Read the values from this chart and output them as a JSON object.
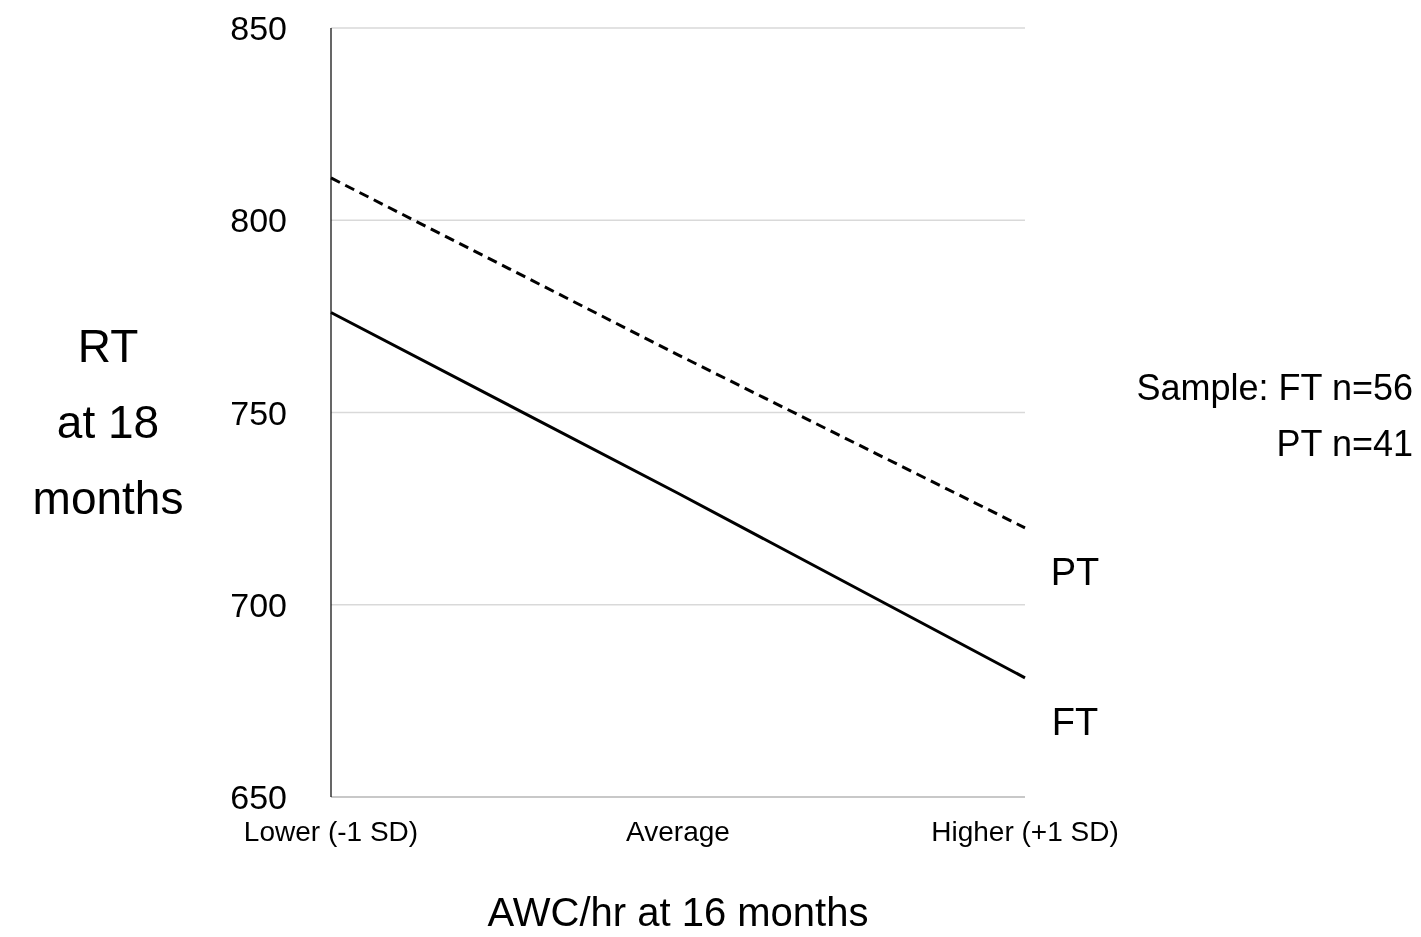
{
  "chart_data": {
    "type": "line",
    "xlabel": "AWC/hr at 16 months",
    "ylabel": "RT\nat 18\nmonths",
    "categories": [
      "Lower (-1 SD)",
      "Average",
      "Higher (+1 SD)"
    ],
    "series": [
      {
        "name": "PT",
        "color": "#000000",
        "line_style": "dashed",
        "values": [
          811,
          765,
          720
        ]
      },
      {
        "name": "FT",
        "color": "#000000",
        "line_style": "solid",
        "values": [
          776,
          729,
          681
        ]
      }
    ],
    "ylim": [
      650,
      850
    ],
    "yticks": [
      650,
      700,
      750,
      800,
      850
    ],
    "grid": "y",
    "marker": "none",
    "annotations": [
      "Sample: FT n=56\nPT n=41"
    ]
  }
}
